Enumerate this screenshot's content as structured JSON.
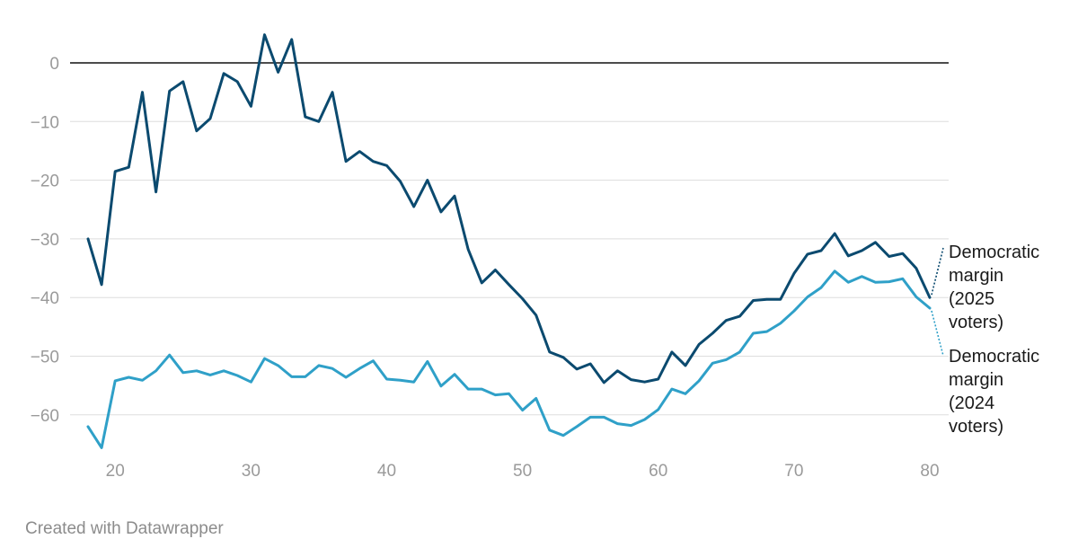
{
  "chart_data": {
    "type": "line",
    "x_ticks": [
      20,
      30,
      40,
      50,
      60,
      70,
      80
    ],
    "y_ticks": [
      0,
      -10,
      -20,
      -30,
      -40,
      -50,
      -60
    ],
    "xlim": [
      18,
      80
    ],
    "ylim": [
      -66,
      5
    ],
    "grid": true,
    "x": [
      18,
      19,
      20,
      21,
      22,
      23,
      24,
      25,
      26,
      27,
      28,
      29,
      30,
      31,
      32,
      33,
      34,
      35,
      36,
      37,
      38,
      39,
      40,
      41,
      42,
      43,
      44,
      45,
      46,
      47,
      48,
      49,
      50,
      51,
      52,
      53,
      54,
      55,
      56,
      57,
      58,
      59,
      60,
      61,
      62,
      63,
      64,
      65,
      66,
      67,
      68,
      69,
      70,
      71,
      72,
      73,
      74,
      75,
      76,
      77,
      78,
      79,
      80
    ],
    "series": [
      {
        "name": "Democratic margin (2025 voters)",
        "color": "#0b4a6f",
        "values": [
          -30,
          -37.8,
          -18.5,
          -17.8,
          -5,
          -22,
          -4.8,
          -3.2,
          -11.6,
          -9.5,
          -1.8,
          -3.2,
          -7.4,
          4.8,
          -1.6,
          4,
          -9.2,
          -10,
          -5,
          -16.8,
          -15.1,
          -16.8,
          -17.5,
          -20.2,
          -24.5,
          -20,
          -25.4,
          -22.7,
          -31.8,
          -37.5,
          -35.3,
          -37.8,
          -40.2,
          -43,
          -49.3,
          -50.2,
          -52.2,
          -51.3,
          -54.5,
          -52.5,
          -54,
          -54.4,
          -53.9,
          -49.3,
          -51.6,
          -48,
          -46.1,
          -43.9,
          -43.2,
          -40.5,
          -40.3,
          -40.3,
          -35.9,
          -32.6,
          -32,
          -29.1,
          -32.9,
          -32,
          -30.6,
          -33,
          -32.5,
          -35,
          -40
        ]
      },
      {
        "name": "Democratic margin (2024 voters)",
        "color": "#2fa0c8",
        "values": [
          -62,
          -65.6,
          -54.2,
          -53.6,
          -54.1,
          -52.5,
          -49.8,
          -52.8,
          -52.5,
          -53.2,
          -52.5,
          -53.3,
          -54.4,
          -50.4,
          -51.6,
          -53.5,
          -53.5,
          -51.6,
          -52.1,
          -53.6,
          -52.1,
          -50.8,
          -53.9,
          -54.1,
          -54.4,
          -50.9,
          -55.1,
          -53.1,
          -55.6,
          -55.6,
          -56.6,
          -56.4,
          -59.2,
          -57.2,
          -62.6,
          -63.5,
          -62,
          -60.4,
          -60.4,
          -61.5,
          -61.8,
          -60.8,
          -59.1,
          -55.6,
          -56.4,
          -54.2,
          -51.2,
          -50.6,
          -49.3,
          -46.1,
          -45.8,
          -44.4,
          -42.3,
          -39.9,
          -38.3,
          -35.5,
          -37.4,
          -36.4,
          -37.4,
          -37.3,
          -36.8,
          -39.9,
          -41.8
        ]
      }
    ],
    "labels": {
      "series_2025": [
        "Democratic",
        "margin",
        "(2025",
        "voters)"
      ],
      "series_2024": [
        "Democratic",
        "margin",
        "(2024",
        "voters)"
      ]
    },
    "credit": "Created with Datawrapper"
  }
}
